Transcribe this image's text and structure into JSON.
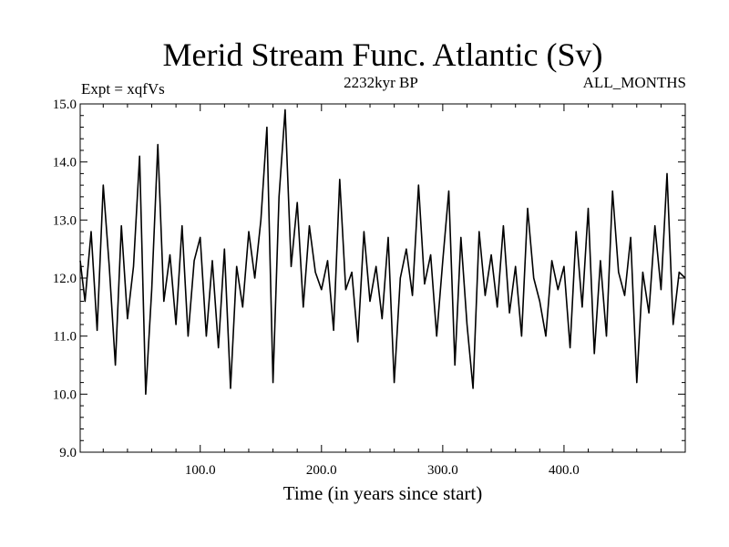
{
  "chart_data": {
    "type": "line",
    "title": "Merid Stream Func. Atlantic (Sv)",
    "subtitle_left": "Expt = xqfVs",
    "subtitle_center": "2232kyr BP",
    "subtitle_right": "ALL_MONTHS",
    "xlabel": "Time (in years since start)",
    "ylabel": "",
    "xlim": [
      1,
      500
    ],
    "ylim": [
      9.0,
      15.0
    ],
    "xticks": [
      100,
      200,
      300,
      400
    ],
    "xtick_labels": [
      "100.0",
      "200.0",
      "300.0",
      "400.0"
    ],
    "yticks": [
      9,
      10,
      11,
      12,
      13,
      14,
      15
    ],
    "ytick_labels": [
      "9.0",
      "10.0",
      "11.0",
      "12.0",
      "13.0",
      "14.0",
      "15.0"
    ],
    "series": [
      {
        "name": "Merid Stream Func. Atlantic",
        "color": "#000000",
        "x": [
          1,
          5,
          10,
          15,
          20,
          25,
          30,
          35,
          40,
          45,
          50,
          55,
          60,
          65,
          70,
          75,
          80,
          85,
          90,
          95,
          100,
          105,
          110,
          115,
          120,
          125,
          130,
          135,
          140,
          145,
          150,
          155,
          160,
          165,
          170,
          175,
          180,
          185,
          190,
          195,
          200,
          205,
          210,
          215,
          220,
          225,
          230,
          235,
          240,
          245,
          250,
          255,
          260,
          265,
          270,
          275,
          280,
          285,
          290,
          295,
          300,
          305,
          310,
          315,
          320,
          325,
          330,
          335,
          340,
          345,
          350,
          355,
          360,
          365,
          370,
          375,
          380,
          385,
          390,
          395,
          400,
          405,
          410,
          415,
          420,
          425,
          430,
          435,
          440,
          445,
          450,
          455,
          460,
          465,
          470,
          475,
          480,
          485,
          490,
          495,
          500
        ],
        "values": [
          12.3,
          11.6,
          12.8,
          11.1,
          13.6,
          12.2,
          10.5,
          12.9,
          11.3,
          12.2,
          14.1,
          10.0,
          11.8,
          14.3,
          11.6,
          12.4,
          11.2,
          12.9,
          11.0,
          12.3,
          12.7,
          11.0,
          12.3,
          10.8,
          12.5,
          10.1,
          12.2,
          11.5,
          12.8,
          12.0,
          13.0,
          14.6,
          10.2,
          13.4,
          14.9,
          12.2,
          13.3,
          11.5,
          12.9,
          12.1,
          11.8,
          12.3,
          11.1,
          13.7,
          11.8,
          12.1,
          10.9,
          12.8,
          11.6,
          12.2,
          11.3,
          12.7,
          10.2,
          12.0,
          12.5,
          11.7,
          13.6,
          11.9,
          12.4,
          11.0,
          12.3,
          13.5,
          10.5,
          12.7,
          11.2,
          10.1,
          12.8,
          11.7,
          12.4,
          11.5,
          12.9,
          11.4,
          12.2,
          11.0,
          13.2,
          12.0,
          11.6,
          11.0,
          12.3,
          11.8,
          12.2,
          10.8,
          12.8,
          11.5,
          13.2,
          10.7,
          12.3,
          11.0,
          13.5,
          12.1,
          11.7,
          12.7,
          10.2,
          12.1,
          11.4,
          12.9,
          11.8,
          13.8,
          11.2,
          12.1,
          12.0
        ]
      }
    ]
  }
}
